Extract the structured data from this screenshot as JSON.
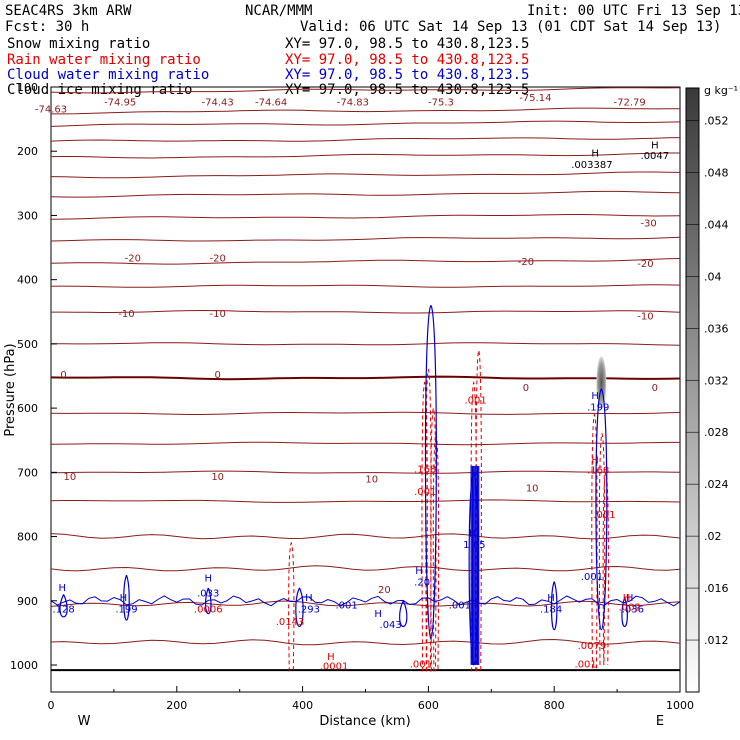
{
  "header": {
    "model": "SEAC4RS  3km ARW",
    "center": "NCAR/MMM",
    "init": "Init: 00 UTC Fri 13 Sep 13",
    "fcst": "Fcst:   30 h",
    "valid": "Valid: 06 UTC Sat 14 Sep 13 (01 CDT Sat 14 Sep 13)",
    "fields": [
      {
        "name": "Snow mixing ratio",
        "xy": "XY=  97.0, 98.5 to 430.8,123.5",
        "color": "#000000"
      },
      {
        "name": "Rain water mixing ratio",
        "xy": "XY=  97.0, 98.5 to 430.8,123.5",
        "color": "#e00000"
      },
      {
        "name": "Cloud water mixing ratio",
        "xy": "XY=  97.0, 98.5 to 430.8,123.5",
        "color": "#0000cc"
      },
      {
        "name": "Cloud ice mixing ratio",
        "xy": "XY=  97.0, 98.5 to 430.8,123.5",
        "color": "#000000"
      }
    ]
  },
  "chart_data": {
    "type": "contour cross-section",
    "xlabel": "Distance (km)",
    "ylabel": "Pressure (hPa)",
    "xlim": [
      0,
      1000
    ],
    "ylim": [
      1000,
      100
    ],
    "xticks": [
      "0",
      "200",
      "400",
      "600",
      "800",
      "1000"
    ],
    "yticks": [
      "100",
      "200",
      "300",
      "400",
      "500",
      "600",
      "700",
      "800",
      "900",
      "1000"
    ],
    "x_end_labels": {
      "left": "W",
      "right": "E"
    },
    "colorbar": {
      "units": "g kg⁻¹",
      "ticks": [
        ".012",
        ".016",
        ".02",
        ".024",
        ".028",
        ".032",
        ".036",
        ".04",
        ".044",
        ".048",
        ".052"
      ]
    },
    "temperature_labels": [
      {
        "x": 0,
        "p": 140,
        "t": "-74.63"
      },
      {
        "x": 110,
        "p": 129,
        "t": "-74.95"
      },
      {
        "x": 265,
        "p": 129,
        "t": "-74.43"
      },
      {
        "x": 350,
        "p": 129,
        "t": "-74.64"
      },
      {
        "x": 480,
        "p": 129,
        "t": "-74.83"
      },
      {
        "x": 620,
        "p": 129,
        "t": "-75.3"
      },
      {
        "x": 770,
        "p": 122,
        "t": "-75.14"
      },
      {
        "x": 920,
        "p": 129,
        "t": "-72.79"
      },
      {
        "x": 950,
        "p": 317,
        "t": "-30"
      },
      {
        "x": 130,
        "p": 372,
        "t": "-20"
      },
      {
        "x": 265,
        "p": 372,
        "t": "-20"
      },
      {
        "x": 755,
        "p": 377,
        "t": "-20"
      },
      {
        "x": 945,
        "p": 380,
        "t": "-20"
      },
      {
        "x": 120,
        "p": 458,
        "t": "-10"
      },
      {
        "x": 265,
        "p": 458,
        "t": "-10"
      },
      {
        "x": 945,
        "p": 462,
        "t": "-10"
      },
      {
        "x": 20,
        "p": 553,
        "t": "0"
      },
      {
        "x": 265,
        "p": 553,
        "t": "0"
      },
      {
        "x": 755,
        "p": 573,
        "t": "0"
      },
      {
        "x": 960,
        "p": 573,
        "t": "0"
      },
      {
        "x": 30,
        "p": 712,
        "t": "10"
      },
      {
        "x": 265,
        "p": 712,
        "t": "10"
      },
      {
        "x": 510,
        "p": 716,
        "t": "10"
      },
      {
        "x": 765,
        "p": 730,
        "t": "10"
      },
      {
        "x": 530,
        "p": 888,
        "t": "20"
      }
    ],
    "cloud_labels": [
      {
        "x": 18,
        "p": 885,
        "t": "H",
        "c": "blue"
      },
      {
        "x": 20,
        "p": 918,
        "t": ".128",
        "c": "blue"
      },
      {
        "x": 115,
        "p": 900,
        "t": "H",
        "c": "blue"
      },
      {
        "x": 120,
        "p": 918,
        "t": ".199",
        "c": "blue"
      },
      {
        "x": 250,
        "p": 870,
        "t": "H",
        "c": "blue"
      },
      {
        "x": 250,
        "p": 893,
        "t": ".033",
        "c": "blue"
      },
      {
        "x": 410,
        "p": 900,
        "t": "H",
        "c": "blue"
      },
      {
        "x": 410,
        "p": 918,
        "t": ".293",
        "c": "blue"
      },
      {
        "x": 470,
        "p": 912,
        "t": ".001",
        "c": "blue"
      },
      {
        "x": 520,
        "p": 925,
        "t": "H",
        "c": "blue"
      },
      {
        "x": 540,
        "p": 942,
        "t": ".043",
        "c": "blue"
      },
      {
        "x": 585,
        "p": 858,
        "t": "H",
        "c": "blue"
      },
      {
        "x": 590,
        "p": 876,
        "t": ".20",
        "c": "blue"
      },
      {
        "x": 650,
        "p": 912,
        "t": ".001",
        "c": "blue"
      },
      {
        "x": 670,
        "p": 800,
        "t": "H",
        "c": "blue"
      },
      {
        "x": 673,
        "p": 818,
        "t": "1.05",
        "c": "blue"
      },
      {
        "x": 795,
        "p": 900,
        "t": "H",
        "c": "blue"
      },
      {
        "x": 795,
        "p": 918,
        "t": ".184",
        "c": "blue"
      },
      {
        "x": 860,
        "p": 868,
        "t": ".001",
        "c": "blue"
      },
      {
        "x": 865,
        "p": 586,
        "t": "H",
        "c": "blue"
      },
      {
        "x": 870,
        "p": 604,
        "t": ".199",
        "c": "blue"
      },
      {
        "x": 920,
        "p": 900,
        "t": "H",
        "c": "blue"
      },
      {
        "x": 925,
        "p": 918,
        "t": ".036",
        "c": "blue"
      }
    ],
    "rain_labels": [
      {
        "x": 250,
        "p": 918,
        "t": ".0006",
        "c": "red"
      },
      {
        "x": 380,
        "p": 938,
        "t": ".0143",
        "c": "red"
      },
      {
        "x": 445,
        "p": 992,
        "t": "H",
        "c": "red"
      },
      {
        "x": 450,
        "p": 1007,
        "t": ".0001",
        "c": "red"
      },
      {
        "x": 595,
        "p": 700,
        "t": ".168",
        "c": "red"
      },
      {
        "x": 595,
        "p": 735,
        "t": ".001",
        "c": "red"
      },
      {
        "x": 588,
        "p": 1004,
        "t": ".001",
        "c": "red"
      },
      {
        "x": 675,
        "p": 593,
        "t": ".001",
        "c": "red"
      },
      {
        "x": 865,
        "p": 686,
        "t": "H",
        "c": "red"
      },
      {
        "x": 870,
        "p": 702,
        "t": ".168",
        "c": "red"
      },
      {
        "x": 880,
        "p": 771,
        "t": ".001",
        "c": "red"
      },
      {
        "x": 915,
        "p": 900,
        "t": "H",
        "c": "red"
      },
      {
        "x": 920,
        "p": 915,
        "t": ".002",
        "c": "red"
      },
      {
        "x": 860,
        "p": 975,
        "t": ".0079",
        "c": "red"
      },
      {
        "x": 850,
        "p": 1004,
        "t": ".001",
        "c": "red"
      }
    ],
    "snow_labels": [
      {
        "x": 865,
        "p": 208,
        "t": "H"
      },
      {
        "x": 860,
        "p": 226,
        "t": ".003387"
      },
      {
        "x": 960,
        "p": 196,
        "t": "H"
      },
      {
        "x": 960,
        "p": 212,
        "t": ".0047"
      }
    ]
  }
}
